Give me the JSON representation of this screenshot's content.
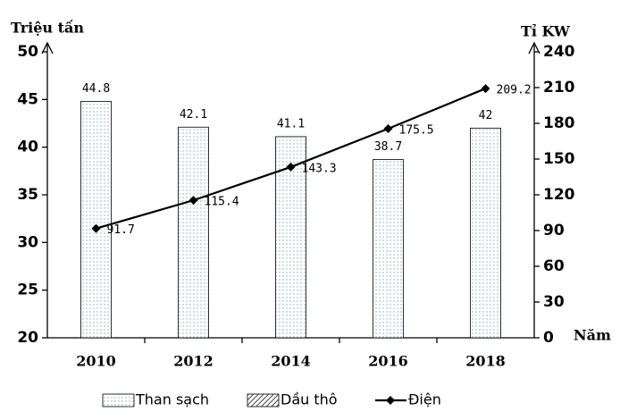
{
  "chart_data": {
    "type": "bar-line",
    "y_label": "Triệu tấn",
    "y2_label": "Tỉ KW",
    "x_label": "Năm",
    "categories": [
      "2010",
      "2012",
      "2014",
      "2016",
      "2018"
    ],
    "series": [
      {
        "name": "Than sạch",
        "type": "bar",
        "color": "#8fa6bf",
        "values": [
          44.8,
          42.1,
          41.1,
          38.7,
          42
        ]
      },
      {
        "name": "Dầu thô",
        "type": "bar",
        "color": "#444444",
        "values": [
          null,
          null,
          null,
          null,
          null
        ]
      },
      {
        "name": "Điện",
        "type": "line",
        "axis": "y2",
        "color": "#000000",
        "values": [
          91.7,
          115.4,
          143.3,
          175.5,
          209.2
        ]
      }
    ],
    "ylim": [
      20,
      50
    ],
    "yticks": [
      20,
      25,
      30,
      35,
      40,
      45,
      50
    ],
    "y2lim": [
      0,
      240
    ],
    "y2ticks": [
      0,
      30,
      60,
      90,
      120,
      150,
      180,
      210,
      240
    ]
  }
}
